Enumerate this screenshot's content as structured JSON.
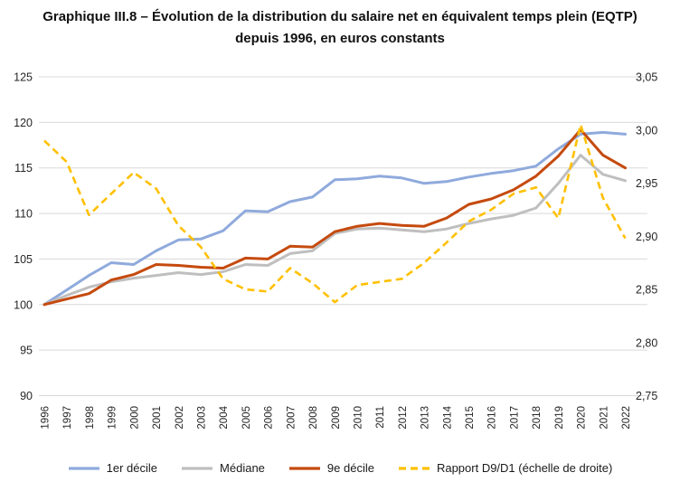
{
  "title": {
    "line1": "Graphique III.8 – Évolution de la distribution du salaire net en équivalent temps plein (EQTP)",
    "line2": "depuis 1996, en euros constants"
  },
  "colors": {
    "d1_blue": "#8FAADC",
    "median_gray": "#BFBFBF",
    "d9_red": "#C54A0E",
    "ratio_yellow": "#FFC000",
    "gridline": "#D9D9D9",
    "text": "#262626"
  },
  "chart_data": {
    "type": "line",
    "title": "Graphique III.8 – Évolution de la distribution du salaire net en équivalent temps plein (EQTP) depuis 1996, en euros constants",
    "x": [
      1996,
      1997,
      1998,
      1999,
      2000,
      2001,
      2002,
      2003,
      2004,
      2005,
      2006,
      2007,
      2008,
      2009,
      2010,
      2011,
      2012,
      2013,
      2014,
      2015,
      2016,
      2017,
      2018,
      2019,
      2020,
      2021,
      2022
    ],
    "left_axis": {
      "range": [
        90,
        125
      ],
      "ticks": [
        125,
        120,
        115,
        110,
        105,
        100,
        95,
        90
      ],
      "tick_labels": [
        "125",
        "120",
        "115",
        "110",
        "105",
        "100",
        "95",
        "90"
      ]
    },
    "right_axis": {
      "range": [
        2.75,
        3.05
      ],
      "ticks": [
        3.05,
        3.0,
        2.95,
        2.9,
        2.85,
        2.8,
        2.75
      ],
      "tick_labels": [
        "3,05",
        "3,00",
        "2,95",
        "2,90",
        "2,85",
        "2,80",
        "2,75"
      ]
    },
    "grid": "horizontal",
    "legend_position": "bottom",
    "series": [
      {
        "name": "1er décile",
        "axis": "left",
        "style": "solid",
        "color": "#8FAADC",
        "values": [
          100,
          101.6,
          103.2,
          104.6,
          104.4,
          105.9,
          107.1,
          107.2,
          108.1,
          110.3,
          110.2,
          111.3,
          111.8,
          113.7,
          113.8,
          114.1,
          113.9,
          113.3,
          113.5,
          114.0,
          114.4,
          114.7,
          115.2,
          117.1,
          118.7,
          118.9,
          118.7
        ]
      },
      {
        "name": "Médiane",
        "axis": "left",
        "style": "solid",
        "color": "#BFBFBF",
        "values": [
          100,
          101.0,
          101.9,
          102.5,
          102.9,
          103.2,
          103.5,
          103.3,
          103.6,
          104.4,
          104.3,
          105.6,
          105.9,
          107.8,
          108.3,
          108.4,
          108.2,
          108.0,
          108.3,
          108.9,
          109.4,
          109.8,
          110.6,
          113.3,
          116.4,
          114.3,
          113.6
        ]
      },
      {
        "name": "9e décile",
        "axis": "left",
        "style": "solid",
        "color": "#C54A0E",
        "values": [
          100,
          100.6,
          101.2,
          102.7,
          103.3,
          104.4,
          104.3,
          104.1,
          104.0,
          105.1,
          105.0,
          106.4,
          106.3,
          108.0,
          108.6,
          108.9,
          108.7,
          108.6,
          109.5,
          111.0,
          111.6,
          112.6,
          114.1,
          116.3,
          119.2,
          116.4,
          115.0
        ]
      },
      {
        "name": "Rapport D9/D1 (échelle de droite)",
        "axis": "right",
        "style": "dashed",
        "color": "#FFC000",
        "values": [
          2.99,
          2.97,
          2.92,
          2.94,
          2.96,
          2.945,
          2.91,
          2.89,
          2.86,
          2.85,
          2.848,
          2.87,
          2.856,
          2.838,
          2.854,
          2.857,
          2.86,
          2.875,
          2.894,
          2.914,
          2.925,
          2.94,
          2.946,
          2.917,
          3.005,
          2.936,
          2.898
        ]
      }
    ]
  }
}
